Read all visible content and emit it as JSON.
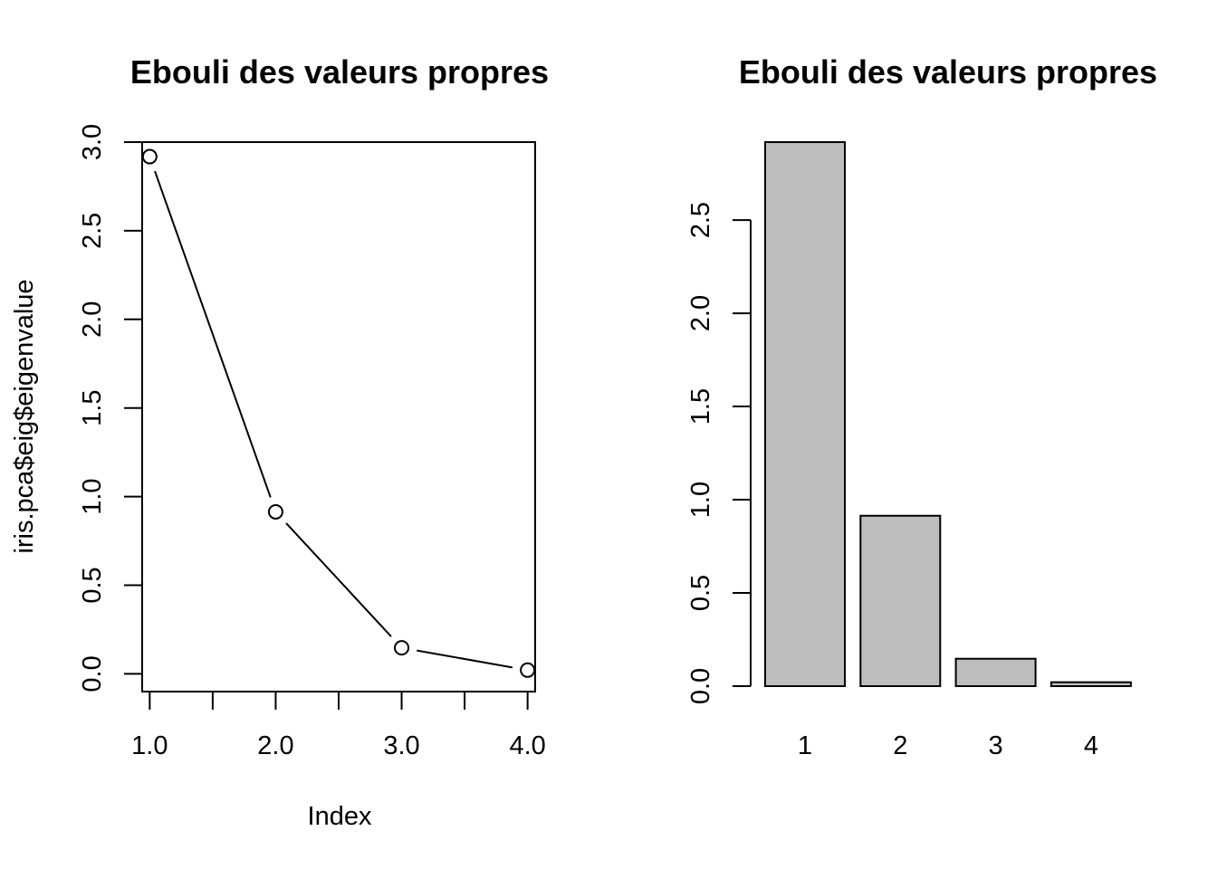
{
  "chart_data": [
    {
      "type": "line",
      "title": "Ebouli des valeurs propres",
      "xlabel": "Index",
      "ylabel": "iris.pca$eig$eigenvalue",
      "x": [
        1,
        2,
        3,
        4
      ],
      "values": [
        2.918,
        0.914,
        0.147,
        0.021
      ],
      "xlim": [
        0.94,
        4.06
      ],
      "ylim": [
        -0.1,
        3.0
      ],
      "xticks": [
        1.0,
        1.5,
        2.0,
        2.5,
        3.0,
        3.5,
        4.0
      ],
      "xtick_labels": [
        "1.0",
        "",
        "2.0",
        "",
        "3.0",
        "",
        "4.0"
      ],
      "yticks": [
        0.0,
        0.5,
        1.0,
        1.5,
        2.0,
        2.5,
        3.0
      ],
      "ytick_labels": [
        "0.0",
        "0.5",
        "1.0",
        "1.5",
        "2.0",
        "2.5",
        "3.0"
      ],
      "marker": "open-circle",
      "line_color": "#000000"
    },
    {
      "type": "bar",
      "title": "Ebouli des valeurs propres",
      "xlabel": "",
      "ylabel": "",
      "categories": [
        "1",
        "2",
        "3",
        "4"
      ],
      "values": [
        2.918,
        0.914,
        0.147,
        0.021
      ],
      "ylim": [
        0,
        2.918
      ],
      "yticks": [
        0.0,
        0.5,
        1.0,
        1.5,
        2.0,
        2.5
      ],
      "ytick_labels": [
        "0.0",
        "0.5",
        "1.0",
        "1.5",
        "2.0",
        "2.5"
      ],
      "bar_color": "#bebebe"
    }
  ]
}
